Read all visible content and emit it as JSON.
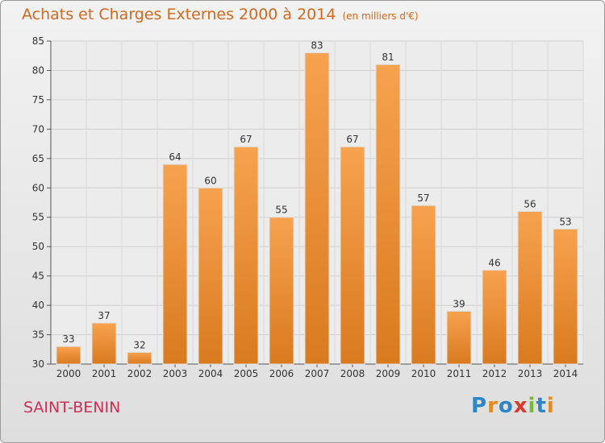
{
  "title": "Achats et Charges Externes 2000 à 2014",
  "subtitle": "(en milliers d'€)",
  "commune": "SAINT-BENIN",
  "logo": {
    "text": "Proxiti",
    "letters": [
      {
        "ch": "P",
        "color": "#2e86c8"
      },
      {
        "ch": "r",
        "color": "#e58a1f"
      },
      {
        "ch": "o",
        "color": "#2e86c8"
      },
      {
        "ch": "x",
        "color": "#d93a2b"
      },
      {
        "ch": "i",
        "color": "#78b83a"
      },
      {
        "ch": "t",
        "color": "#2e86c8"
      },
      {
        "ch": "i",
        "color": "#e58a1f"
      }
    ]
  },
  "colors": {
    "bar_top": "#f7a24f",
    "bar_bottom": "#d97a1f",
    "title": "#d2691e",
    "commune": "#cf2f55"
  },
  "chart_data": {
    "type": "bar",
    "categories": [
      "2000",
      "2001",
      "2002",
      "2003",
      "2004",
      "2005",
      "2006",
      "2007",
      "2008",
      "2009",
      "2010",
      "2011",
      "2012",
      "2013",
      "2014"
    ],
    "values": [
      33,
      37,
      32,
      64,
      60,
      67,
      55,
      83,
      67,
      81,
      57,
      39,
      46,
      56,
      53
    ],
    "ylim": [
      30,
      85
    ],
    "yticks": [
      30,
      35,
      40,
      45,
      50,
      55,
      60,
      65,
      70,
      75,
      80,
      85
    ],
    "grid": true,
    "data_labels": true
  }
}
